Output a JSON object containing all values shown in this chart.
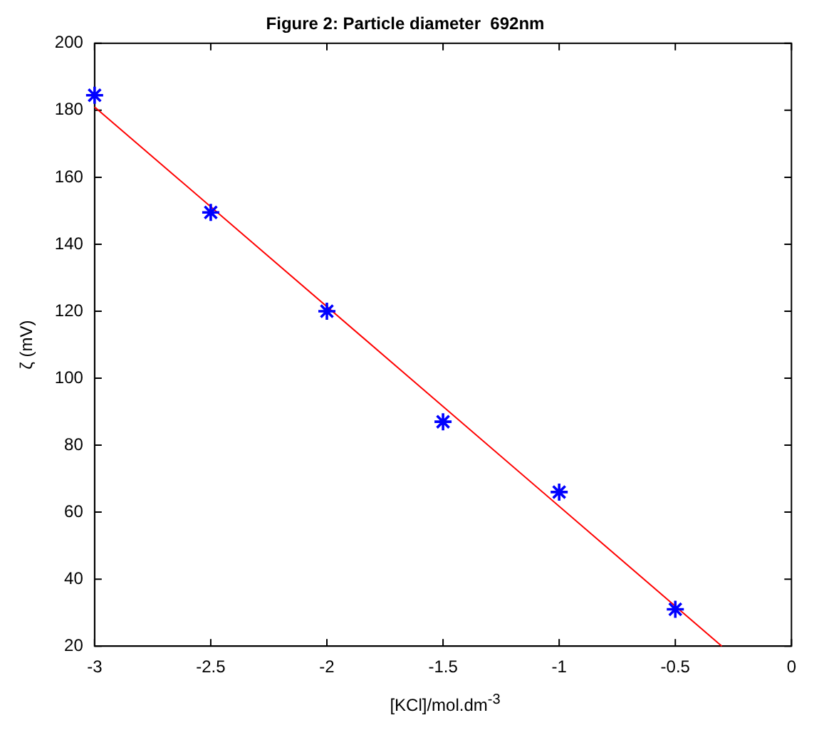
{
  "chart_data": {
    "type": "scatter",
    "title": "Figure 2: Particle diameter  692nm",
    "xlabel": "[KCl]/mol.dm$^{-3}$",
    "ylabel": "ζ (mV)",
    "xlim": [
      -3,
      0
    ],
    "xticks": [
      -3,
      -2.5,
      -2,
      -1.5,
      -1,
      -0.5,
      0
    ],
    "ylim": [
      20,
      200
    ],
    "yticks": [
      20,
      40,
      60,
      80,
      100,
      120,
      140,
      160,
      180,
      200
    ],
    "series": [
      {
        "type": "scatter",
        "color": "#0000ff",
        "marker": "cross",
        "x": [
          -3,
          -2.5,
          -2,
          -1.5,
          -1,
          -0.5
        ],
        "values": [
          184.5,
          149.5,
          120,
          87,
          66,
          31
        ]
      },
      {
        "type": "line",
        "color": "#ff0000",
        "marker": "none",
        "x": [
          -3,
          -0.3
        ],
        "values": [
          181,
          20
        ]
      }
    ]
  }
}
